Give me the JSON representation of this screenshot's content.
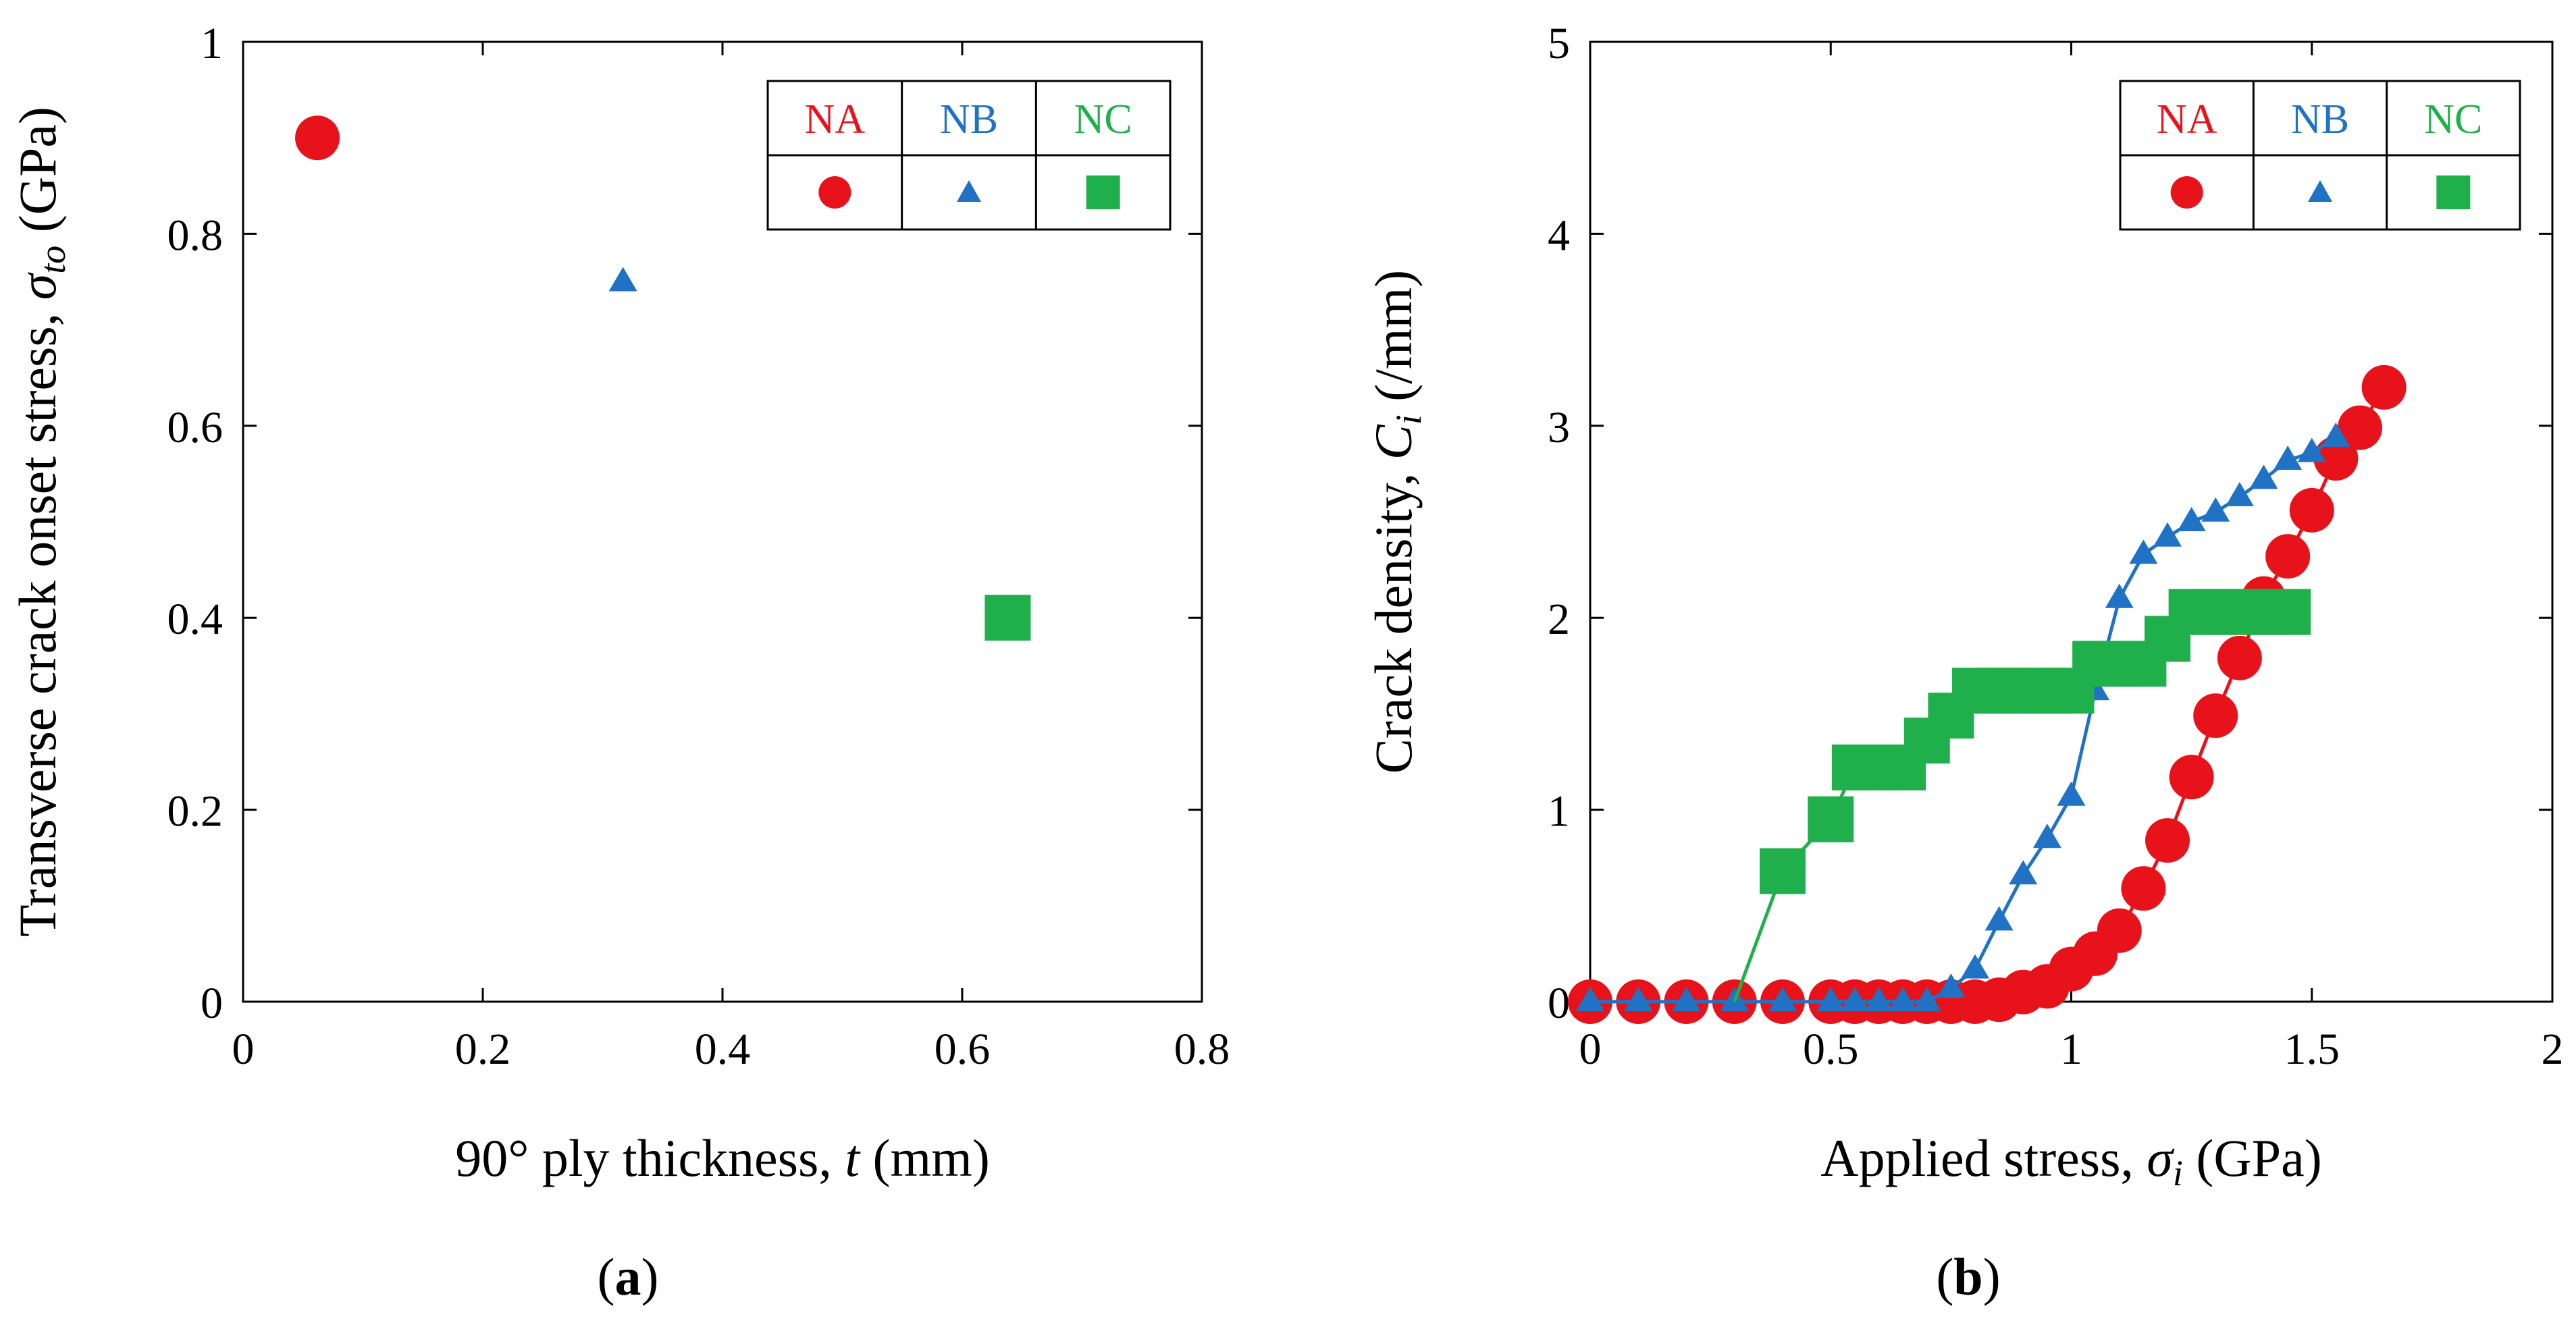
{
  "chart_data": [
    {
      "type": "scatter",
      "panel_label": "a",
      "xlabel": {
        "pre": "90° ply thickness, ",
        "var": "t",
        "post": " (mm)"
      },
      "ylabel": {
        "pre": "Transverse crack onset stress, ",
        "var": "σ",
        "sub": "to",
        "post": " (GPa)"
      },
      "xlim": [
        0,
        0.8
      ],
      "ylim": [
        0,
        1
      ],
      "xticks": [
        0,
        0.2,
        0.4,
        0.6,
        0.8
      ],
      "yticks": [
        0,
        0.2,
        0.4,
        0.6,
        0.8,
        1
      ],
      "xtick_labels": [
        "0",
        "0.2",
        "0.4",
        "0.6",
        "0.8"
      ],
      "ytick_labels": [
        "0",
        "0.2",
        "0.4",
        "0.6",
        "0.8",
        "1"
      ],
      "legend_position": "top-right",
      "series": [
        {
          "name": "NA",
          "color": "#e8121b",
          "marker": "circle",
          "points": [
            [
              0.062,
              0.9
            ]
          ]
        },
        {
          "name": "NB",
          "color": "#1f72c4",
          "marker": "triangle",
          "points": [
            [
              0.317,
              0.75
            ]
          ]
        },
        {
          "name": "NC",
          "color": "#20b04b",
          "marker": "square",
          "points": [
            [
              0.638,
              0.4
            ]
          ]
        }
      ]
    },
    {
      "type": "line",
      "panel_label": "b",
      "xlabel": {
        "pre": "Applied stress, ",
        "var": "σ",
        "sub": "i",
        "post": " (GPa)"
      },
      "ylabel": {
        "pre": "Crack density, ",
        "var": "C",
        "sub": "i",
        "post": " (/mm)"
      },
      "xlim": [
        0,
        2
      ],
      "ylim": [
        0,
        5
      ],
      "xticks": [
        0,
        0.5,
        1,
        1.5,
        2
      ],
      "yticks": [
        0,
        1,
        2,
        3,
        4,
        5
      ],
      "xtick_labels": [
        "0",
        "0.5",
        "1",
        "1.5",
        "2"
      ],
      "ytick_labels": [
        "0",
        "1",
        "2",
        "3",
        "4",
        "5"
      ],
      "legend_position": "top-right",
      "series": [
        {
          "name": "NA",
          "color": "#e8121b",
          "marker": "circle",
          "x": [
            0,
            0.1,
            0.2,
            0.3,
            0.4,
            0.5,
            0.55,
            0.6,
            0.65,
            0.7,
            0.75,
            0.8,
            0.85,
            0.9,
            0.95,
            1.0,
            1.05,
            1.1,
            1.15,
            1.2,
            1.25,
            1.3,
            1.35,
            1.4,
            1.45,
            1.5,
            1.55,
            1.6,
            1.65
          ],
          "y": [
            0,
            0,
            0,
            0,
            0,
            0,
            0,
            0,
            0,
            0,
            0,
            0,
            0.01,
            0.05,
            0.08,
            0.17,
            0.25,
            0.37,
            0.59,
            0.84,
            1.17,
            1.49,
            1.79,
            2.1,
            2.32,
            2.56,
            2.83,
            2.99,
            3.2
          ]
        },
        {
          "name": "NB",
          "color": "#1f72c4",
          "marker": "triangle",
          "x": [
            0,
            0.1,
            0.2,
            0.3,
            0.4,
            0.5,
            0.55,
            0.6,
            0.65,
            0.7,
            0.75,
            0.8,
            0.85,
            0.9,
            0.95,
            1.0,
            1.05,
            1.1,
            1.15,
            1.2,
            1.25,
            1.3,
            1.35,
            1.4,
            1.45,
            1.5,
            1.55
          ],
          "y": [
            0,
            0,
            0,
            0,
            0,
            0,
            0,
            0,
            0,
            0,
            0.07,
            0.17,
            0.42,
            0.66,
            0.85,
            1.07,
            1.62,
            2.1,
            2.33,
            2.42,
            2.5,
            2.55,
            2.63,
            2.72,
            2.82,
            2.86,
            2.94
          ]
        },
        {
          "name": "NC",
          "color": "#20b04b",
          "marker": "square",
          "x": [
            0.3,
            0.4,
            0.5,
            0.55,
            0.6,
            0.65,
            0.7,
            0.75,
            0.8,
            0.85,
            0.9,
            0.95,
            1.0,
            1.05,
            1.1,
            1.15,
            1.2,
            1.25,
            1.3,
            1.35,
            1.4,
            1.45
          ],
          "y": [
            0,
            0.68,
            0.95,
            1.22,
            1.22,
            1.22,
            1.36,
            1.49,
            1.62,
            1.62,
            1.62,
            1.62,
            1.62,
            1.76,
            1.76,
            1.76,
            1.89,
            2.03,
            2.03,
            2.03,
            2.03,
            2.03
          ],
          "visible_markers_from_index": 1
        }
      ]
    }
  ]
}
